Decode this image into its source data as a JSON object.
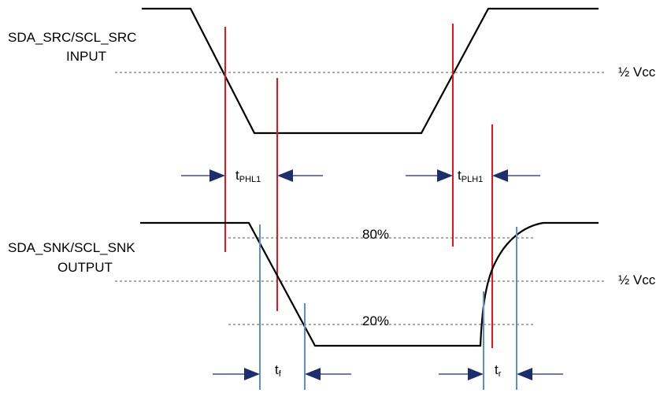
{
  "input_signal": {
    "name_line1": "SDA_SRC/SCL_SRC",
    "name_line2": "INPUT",
    "ref_label": "½ Vcc"
  },
  "output_signal": {
    "name_line1": "SDA_SNK/SCL_SNK",
    "name_line2": "OUTPUT",
    "ref_label": "½ Vcc",
    "high_threshold": "80%",
    "low_threshold": "20%"
  },
  "timings": {
    "t_phl": {
      "main": "t",
      "sub": "PHL1"
    },
    "t_plh": {
      "main": "t",
      "sub": "PLH1"
    },
    "t_fall": {
      "main": "t",
      "sub": "f"
    },
    "t_rise": {
      "main": "t",
      "sub": "r"
    }
  },
  "colors": {
    "propagation_marker": "#e8141c",
    "transition_marker": "#5b8fd0",
    "arrow": "#1a2f6b",
    "waveform": "#000000",
    "reference_line": "#555555"
  }
}
